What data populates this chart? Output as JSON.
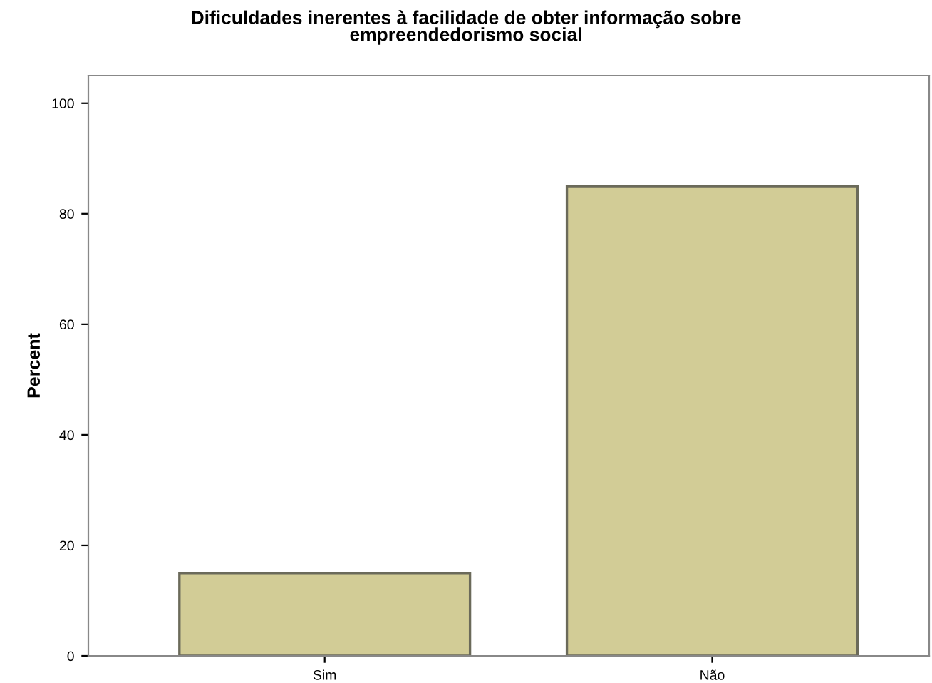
{
  "chart_data": {
    "type": "bar",
    "title": "Dificuldades inerentes à facilidade de obter informação sobre\nempreendedorismo social",
    "ylabel": "Percent",
    "categories": [
      "Sim",
      "Não"
    ],
    "values": [
      15,
      85
    ],
    "color": "#d2cc96",
    "ylim": [
      0,
      105
    ],
    "yticks": [
      0,
      20,
      40,
      60,
      80,
      100
    ],
    "grid": false
  }
}
